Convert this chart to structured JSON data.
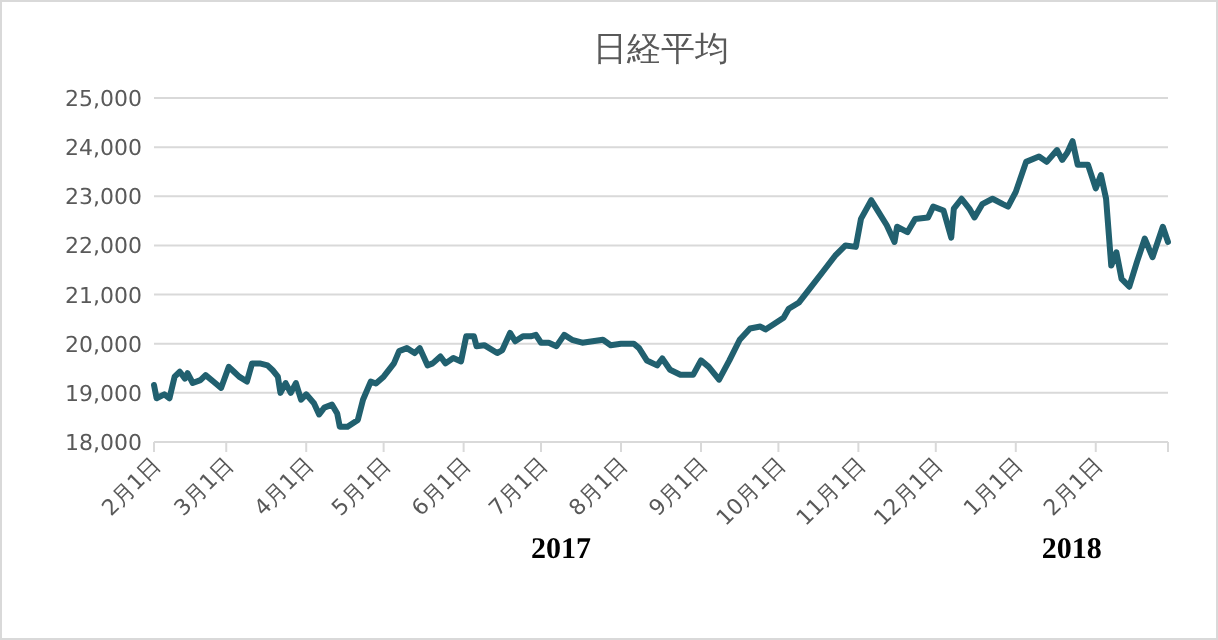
{
  "chart_data": {
    "type": "line",
    "title": "日経平均",
    "x": [
      "2017-02-01",
      "2017-02-02",
      "2017-02-05",
      "2017-02-07",
      "2017-02-09",
      "2017-02-11",
      "2017-02-13",
      "2017-02-14",
      "2017-02-16",
      "2017-02-19",
      "2017-02-21",
      "2017-02-24",
      "2017-02-27",
      "2017-03-02",
      "2017-03-04",
      "2017-03-06",
      "2017-03-09",
      "2017-03-11",
      "2017-03-14",
      "2017-03-17",
      "2017-03-19",
      "2017-03-21",
      "2017-03-22",
      "2017-03-24",
      "2017-03-26",
      "2017-03-28",
      "2017-03-30",
      "2017-04-01",
      "2017-04-04",
      "2017-04-06",
      "2017-04-08",
      "2017-04-11",
      "2017-04-13",
      "2017-04-14",
      "2017-04-17",
      "2017-04-21",
      "2017-04-23",
      "2017-04-26",
      "2017-04-28",
      "2017-05-01",
      "2017-05-05",
      "2017-05-07",
      "2017-05-10",
      "2017-05-13",
      "2017-05-15",
      "2017-05-18",
      "2017-05-20",
      "2017-05-23",
      "2017-05-25",
      "2017-05-28",
      "2017-05-31",
      "2017-06-02",
      "2017-06-05",
      "2017-06-06",
      "2017-06-09",
      "2017-06-14",
      "2017-06-16",
      "2017-06-19",
      "2017-06-21",
      "2017-06-24",
      "2017-06-27",
      "2017-06-29",
      "2017-07-01",
      "2017-07-04",
      "2017-07-07",
      "2017-07-10",
      "2017-07-13",
      "2017-07-17",
      "2017-07-21",
      "2017-07-25",
      "2017-07-28",
      "2017-08-01",
      "2017-08-06",
      "2017-08-08",
      "2017-08-11",
      "2017-08-15",
      "2017-08-17",
      "2017-08-20",
      "2017-08-24",
      "2017-08-29",
      "2017-09-01",
      "2017-09-04",
      "2017-09-08",
      "2017-09-12",
      "2017-09-16",
      "2017-09-20",
      "2017-09-24",
      "2017-09-26",
      "2017-09-29",
      "2017-10-03",
      "2017-10-05",
      "2017-10-09",
      "2017-10-13",
      "2017-10-18",
      "2017-10-23",
      "2017-10-27",
      "2017-10-31",
      "2017-11-02",
      "2017-11-06",
      "2017-11-08",
      "2017-11-12",
      "2017-11-15",
      "2017-11-16",
      "2017-11-20",
      "2017-11-23",
      "2017-11-28",
      "2017-11-30",
      "2017-12-04",
      "2017-12-07",
      "2017-12-08",
      "2017-12-11",
      "2017-12-14",
      "2017-12-16",
      "2017-12-19",
      "2017-12-23",
      "2017-12-27",
      "2017-12-29",
      "2018-01-01",
      "2018-01-05",
      "2018-01-10",
      "2018-01-13",
      "2018-01-17",
      "2018-01-19",
      "2018-01-21",
      "2018-01-23",
      "2018-01-25",
      "2018-01-29",
      "2018-02-01",
      "2018-02-03",
      "2018-02-05",
      "2018-02-07",
      "2018-02-09",
      "2018-02-11",
      "2018-02-14",
      "2018-02-17",
      "2018-02-20",
      "2018-02-23",
      "2018-02-25",
      "2018-02-27",
      "2018-03-01"
    ],
    "series": [
      {
        "color": "#21606f",
        "values": [
          19160,
          18890,
          18970,
          18890,
          19330,
          19430,
          19290,
          19400,
          19200,
          19260,
          19360,
          19230,
          19100,
          19530,
          19430,
          19330,
          19230,
          19600,
          19600,
          19560,
          19460,
          19330,
          19000,
          19200,
          19000,
          19200,
          18860,
          18970,
          18790,
          18560,
          18700,
          18760,
          18580,
          18310,
          18310,
          18450,
          18860,
          19230,
          19190,
          19330,
          19600,
          19850,
          19910,
          19810,
          19910,
          19560,
          19600,
          19740,
          19600,
          19710,
          19640,
          20150,
          20150,
          19950,
          19970,
          19810,
          19870,
          20220,
          20050,
          20150,
          20150,
          20180,
          20020,
          20020,
          19950,
          20180,
          20080,
          20020,
          20050,
          20080,
          19970,
          20000,
          20000,
          19910,
          19660,
          19560,
          19700,
          19470,
          19370,
          19370,
          19660,
          19530,
          19270,
          19660,
          20080,
          20310,
          20350,
          20290,
          20390,
          20530,
          20710,
          20840,
          21110,
          21450,
          21790,
          22000,
          21970,
          22540,
          22920,
          22750,
          22410,
          22070,
          22380,
          22270,
          22540,
          22570,
          22790,
          22710,
          22160,
          22750,
          22950,
          22750,
          22570,
          22840,
          22950,
          22840,
          22790,
          23090,
          23700,
          23810,
          23700,
          23940,
          23740,
          23890,
          24120,
          23640,
          23640,
          23160,
          23430,
          22950,
          21590,
          21860,
          21320,
          21160,
          21670,
          22140,
          21760,
          22070,
          22380,
          22070
        ]
      }
    ],
    "xlim": [
      "2017-02-01",
      "2018-03-01"
    ],
    "xticks": [
      {
        "value": "2017-02-01",
        "label": "2月1日"
      },
      {
        "value": "2017-03-01",
        "label": "3月1日"
      },
      {
        "value": "2017-04-01",
        "label": "4月1日"
      },
      {
        "value": "2017-05-01",
        "label": "5月1日"
      },
      {
        "value": "2017-06-01",
        "label": "6月1日"
      },
      {
        "value": "2017-07-01",
        "label": "7月1日"
      },
      {
        "value": "2017-08-01",
        "label": "8月1日"
      },
      {
        "value": "2017-09-01",
        "label": "9月1日"
      },
      {
        "value": "2017-10-01",
        "label": "10月1日"
      },
      {
        "value": "2017-11-01",
        "label": "11月1日"
      },
      {
        "value": "2017-12-01",
        "label": "12月1日"
      },
      {
        "value": "2018-01-01",
        "label": "1月1日"
      },
      {
        "value": "2018-02-01",
        "label": "2月1日"
      },
      {
        "value": "2018-03-01",
        "label": null
      }
    ],
    "ylim": [
      18000,
      25000
    ],
    "yticks": [
      {
        "value": 18000,
        "label": "18,000"
      },
      {
        "value": 19000,
        "label": "19,000"
      },
      {
        "value": 20000,
        "label": "20,000"
      },
      {
        "value": 21000,
        "label": "21,000"
      },
      {
        "value": 22000,
        "label": "22,000"
      },
      {
        "value": 23000,
        "label": "23,000"
      },
      {
        "value": 24000,
        "label": "24,000"
      },
      {
        "value": 25000,
        "label": "25,000"
      }
    ],
    "grid": "y",
    "annotations": [
      "2017",
      "2018"
    ]
  }
}
